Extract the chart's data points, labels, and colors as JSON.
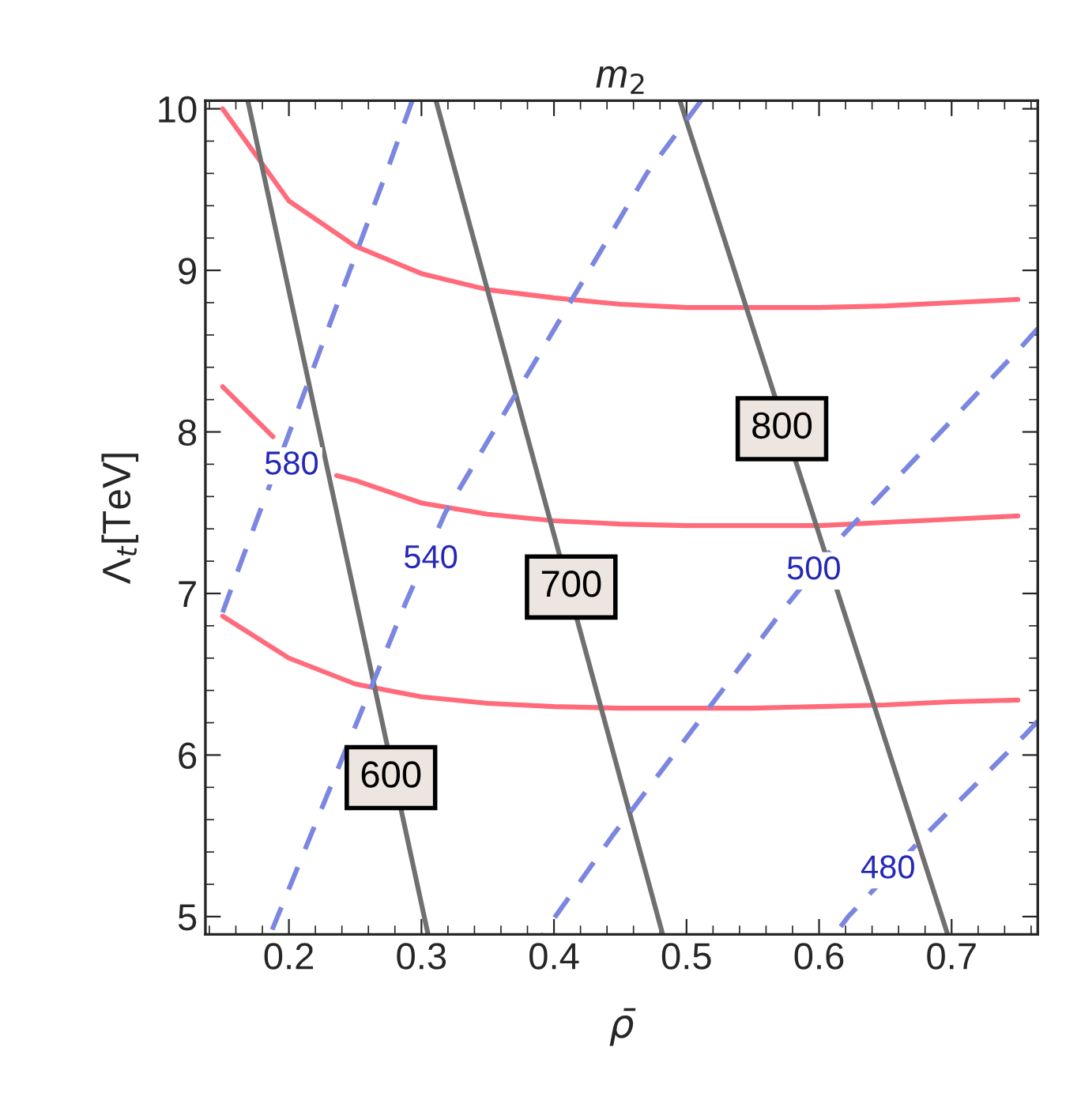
{
  "chart_data": {
    "type": "line",
    "title": "m$_{2}$",
    "xlabel": "ρ̄",
    "ylabel": "Λ$_{t}$[TeV]",
    "xlim": [
      0.137,
      0.765
    ],
    "ylim": [
      4.89,
      10.05
    ],
    "xticks": [
      0.2,
      0.3,
      0.4,
      0.5,
      0.6,
      0.7
    ],
    "yticks": [
      5,
      6,
      7,
      8,
      9,
      10
    ],
    "grid": false,
    "legend": false,
    "marker": "none",
    "series": [
      {
        "color": "#ff6b7a",
        "line_style": "solid",
        "x": [
          0.15,
          0.2,
          0.25,
          0.3,
          0.35,
          0.4,
          0.45,
          0.5,
          0.55,
          0.6,
          0.65,
          0.7,
          0.75
        ],
        "values": [
          10.0,
          9.43,
          9.15,
          8.98,
          8.88,
          8.83,
          8.79,
          8.77,
          8.77,
          8.77,
          8.78,
          8.8,
          8.82
        ]
      },
      {
        "color": "#ff6b7a",
        "line_style": "solid",
        "x": [
          0.15,
          0.188,
          0.205,
          0.236,
          0.25,
          0.3,
          0.35,
          0.4,
          0.45,
          0.5,
          0.55,
          0.6,
          0.65,
          0.7,
          0.75
        ],
        "values": [
          8.28,
          7.97,
          null,
          7.73,
          7.7,
          7.56,
          7.49,
          7.45,
          7.43,
          7.42,
          7.42,
          7.42,
          7.44,
          7.46,
          7.48
        ]
      },
      {
        "color": "#ff6b7a",
        "line_style": "solid",
        "x": [
          0.15,
          0.2,
          0.25,
          0.3,
          0.35,
          0.4,
          0.45,
          0.5,
          0.55,
          0.6,
          0.65,
          0.7,
          0.75
        ],
        "values": [
          6.86,
          6.6,
          6.44,
          6.36,
          6.32,
          6.3,
          6.29,
          6.29,
          6.29,
          6.3,
          6.31,
          6.33,
          6.34
        ]
      },
      {
        "color": "#707070",
        "line_style": "solid",
        "x": [
          0.169,
          0.305
        ],
        "values": [
          10.05,
          4.89
        ]
      },
      {
        "color": "#707070",
        "line_style": "solid",
        "x": [
          0.311,
          0.482
        ],
        "values": [
          10.05,
          4.89
        ]
      },
      {
        "color": "#707070",
        "line_style": "solid",
        "x": [
          0.495,
          0.697
        ],
        "values": [
          10.05,
          4.89
        ]
      },
      {
        "color": "#7b86e0",
        "line_style": "dashed",
        "x": [
          0.293,
          0.276,
          0.161,
          0.149
        ],
        "values": [
          10.05,
          9.66,
          7.13,
          6.86
        ]
      },
      {
        "color": "#7b86e0",
        "line_style": "dashed",
        "x": [
          0.511,
          0.47,
          0.318,
          0.288,
          0.186
        ],
        "values": [
          10.05,
          9.6,
          7.5,
          6.94,
          4.89
        ]
      },
      {
        "color": "#7b86e0",
        "line_style": "dashed",
        "x": [
          0.765,
          0.753,
          0.619,
          0.572,
          0.445,
          0.401,
          0.392
        ],
        "values": [
          8.64,
          8.53,
          7.37,
          6.89,
          5.51,
          5.0,
          4.89
        ]
      },
      {
        "color": "#7b86e0",
        "line_style": "dashed",
        "x": [
          0.765,
          0.756,
          0.682,
          0.622,
          0.612
        ],
        "values": [
          6.21,
          6.13,
          5.52,
          5.0,
          4.89
        ]
      }
    ],
    "annotations": [
      {
        "text": "600",
        "x": 0.277,
        "y": 5.86
      },
      {
        "text": "700",
        "x": 0.413,
        "y": 7.04
      },
      {
        "text": "800",
        "x": 0.572,
        "y": 8.02
      },
      {
        "text": "580",
        "x": 0.202,
        "y": 7.79
      },
      {
        "text": "540",
        "x": 0.307,
        "y": 7.21
      },
      {
        "text": "500",
        "x": 0.596,
        "y": 7.14
      },
      {
        "text": "480",
        "x": 0.652,
        "y": 5.29
      }
    ]
  }
}
